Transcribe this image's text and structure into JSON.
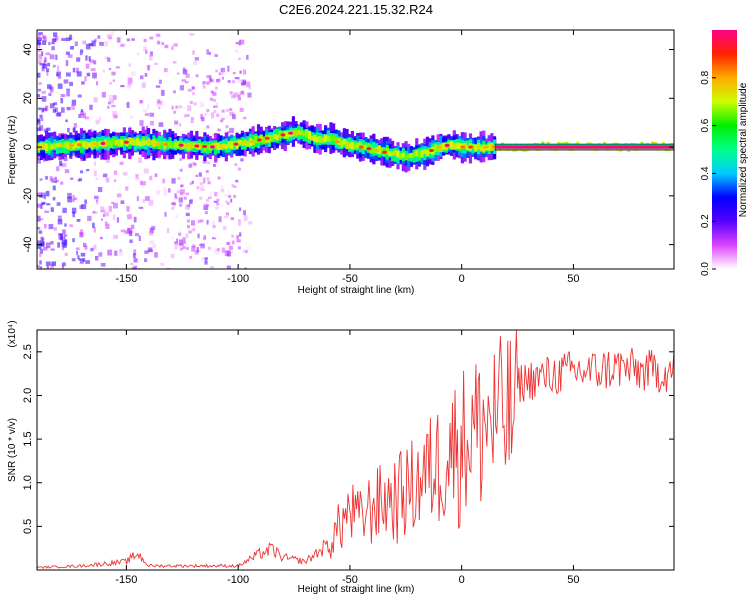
{
  "title": "C2E6.2024.221.15.32.R24",
  "chart_data": [
    {
      "type": "heatmap",
      "xlabel": "Height of straight line (km)",
      "ylabel": "Frequency (Hz)",
      "xlim": [
        -190,
        95
      ],
      "ylim": [
        -50,
        48
      ],
      "xticks": [
        -150,
        -100,
        -50,
        0,
        50
      ],
      "yticks": [
        -40,
        -20,
        0,
        20,
        40
      ],
      "colorbar": {
        "label": "Normalized spectral amplitude",
        "range": [
          0,
          1
        ],
        "ticks": [
          "0.0",
          "0.2",
          "0.4",
          "0.6",
          "0.8"
        ],
        "tick_values": [
          0,
          0.2,
          0.4,
          0.6,
          0.8
        ],
        "colors": [
          "#ffffff",
          "#dd44ff",
          "#5500ff",
          "#0000ff",
          "#00ccff",
          "#00ff88",
          "#00ee00",
          "#ccff00",
          "#ffaa00",
          "#ff2200",
          "#ff0088"
        ]
      },
      "ridge": {
        "x": [
          -190,
          -170,
          -150,
          -130,
          -110,
          -95,
          -85,
          -75,
          -70,
          -65,
          -60,
          -55,
          -50,
          -45,
          -40,
          -35,
          -30,
          -25,
          -20,
          -15,
          -10,
          -5,
          0,
          10,
          20,
          40,
          60,
          95
        ],
        "y": [
          0,
          1,
          2,
          1,
          0,
          2,
          4,
          6,
          5,
          3,
          4,
          2,
          1,
          0,
          -1,
          -2,
          -3,
          -4,
          -3,
          -2,
          0,
          1,
          0,
          0,
          0,
          0,
          0,
          0
        ]
      }
    },
    {
      "type": "line",
      "xlabel": "Height of straight line (km)",
      "ylabel": "SNR (10 * v/v)",
      "y_multiplier": "(x10⁴)",
      "xlim": [
        -190,
        95
      ],
      "ylim": [
        0,
        2.75
      ],
      "xticks": [
        -150,
        -100,
        -50,
        0,
        50
      ],
      "yticks": [
        0.5,
        1.0,
        1.5,
        2.0,
        2.5
      ],
      "ytick_labels": [
        "0.5",
        "1.0",
        "1.5",
        "2.0",
        "2.5"
      ],
      "color": "#ee3333",
      "envelope": {
        "x": [
          -190,
          -170,
          -150,
          -145,
          -140,
          -120,
          -100,
          -90,
          -85,
          -80,
          -70,
          -60,
          -55,
          -50,
          -45,
          -40,
          -30,
          -20,
          -10,
          0,
          10,
          20,
          30,
          50,
          60,
          70,
          80,
          95
        ],
        "y": [
          0.03,
          0.05,
          0.1,
          0.2,
          0.05,
          0.05,
          0.05,
          0.2,
          0.25,
          0.15,
          0.1,
          0.3,
          0.6,
          0.8,
          0.7,
          0.9,
          1.0,
          1.2,
          1.5,
          1.8,
          2.0,
          2.1,
          2.2,
          2.3,
          2.3,
          2.35,
          2.3,
          2.3
        ]
      }
    }
  ]
}
